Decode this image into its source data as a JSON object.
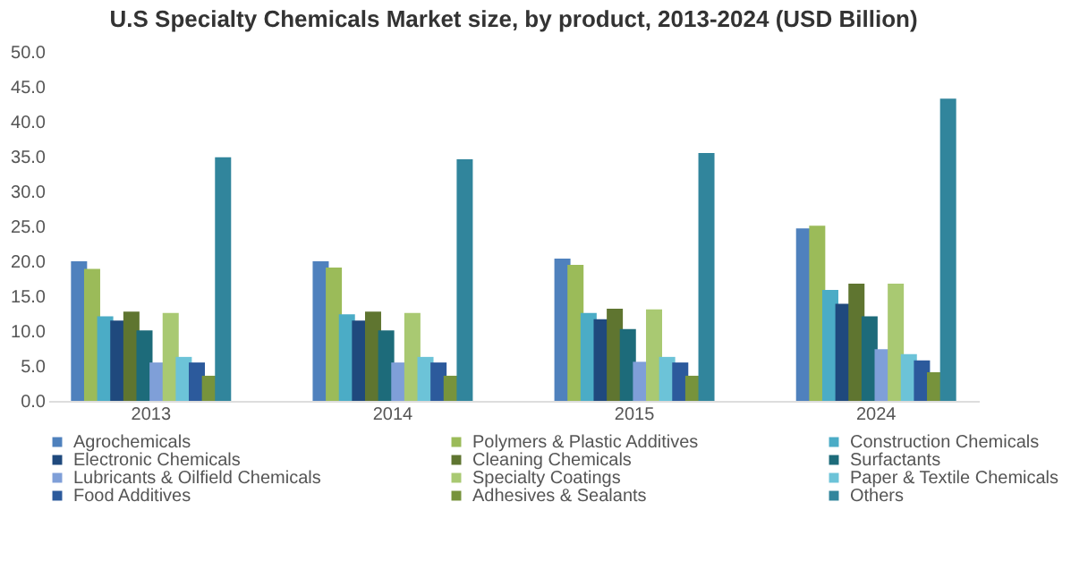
{
  "chart_data": {
    "type": "bar",
    "title": "U.S Specialty Chemicals Market size, by product, 2013-2024 (USD Billion)",
    "categories": [
      "2013",
      "2014",
      "2015",
      "2024"
    ],
    "series": [
      {
        "name": "Agrochemicals",
        "color": "#4f81bd",
        "values": [
          20.0,
          20.0,
          20.4,
          24.7
        ]
      },
      {
        "name": "Polymers & Plastic Additives",
        "color": "#9bbb59",
        "values": [
          18.9,
          19.1,
          19.5,
          25.1
        ]
      },
      {
        "name": "Construction Chemicals",
        "color": "#4bacc6",
        "values": [
          12.1,
          12.4,
          12.6,
          15.9
        ]
      },
      {
        "name": "Electronic Chemicals",
        "color": "#1f497d",
        "values": [
          11.5,
          11.5,
          11.7,
          13.9
        ]
      },
      {
        "name": "Cleaning Chemicals",
        "color": "#5f7530",
        "values": [
          12.8,
          12.8,
          13.2,
          16.8
        ]
      },
      {
        "name": "Surfactants",
        "color": "#1d6b7a",
        "values": [
          10.1,
          10.1,
          10.3,
          12.1
        ]
      },
      {
        "name": "Lubricants & Oilfield Chemicals",
        "color": "#7f9fd8",
        "values": [
          5.5,
          5.5,
          5.6,
          7.4
        ]
      },
      {
        "name": "Specialty Coatings",
        "color": "#a9c972",
        "values": [
          12.6,
          12.6,
          13.1,
          16.8
        ]
      },
      {
        "name": "Paper & Textile Chemicals",
        "color": "#6cc3d8",
        "values": [
          6.3,
          6.3,
          6.3,
          6.7
        ]
      },
      {
        "name": "Food Additives",
        "color": "#2c5a9c",
        "values": [
          5.5,
          5.5,
          5.5,
          5.8
        ]
      },
      {
        "name": "Adhesives & Sealants",
        "color": "#77933c",
        "values": [
          3.6,
          3.6,
          3.6,
          4.1
        ]
      },
      {
        "name": "Others",
        "color": "#31859c",
        "values": [
          34.9,
          34.6,
          35.5,
          43.3
        ]
      }
    ],
    "ylim": [
      0,
      50
    ],
    "yticks": [
      {
        "value": 0,
        "label": "0.0"
      },
      {
        "value": 5,
        "label": "5.0"
      },
      {
        "value": 10,
        "label": "10.0"
      },
      {
        "value": 15,
        "label": "15.0"
      },
      {
        "value": 20,
        "label": "20.0"
      },
      {
        "value": 25,
        "label": "25.0"
      },
      {
        "value": 30,
        "label": "30.0"
      },
      {
        "value": 35,
        "label": "35.0"
      },
      {
        "value": 40,
        "label": "40.0"
      },
      {
        "value": 45,
        "label": "45.0"
      },
      {
        "value": 50,
        "label": "50.0"
      }
    ],
    "grid": false,
    "legend": "bottom"
  }
}
